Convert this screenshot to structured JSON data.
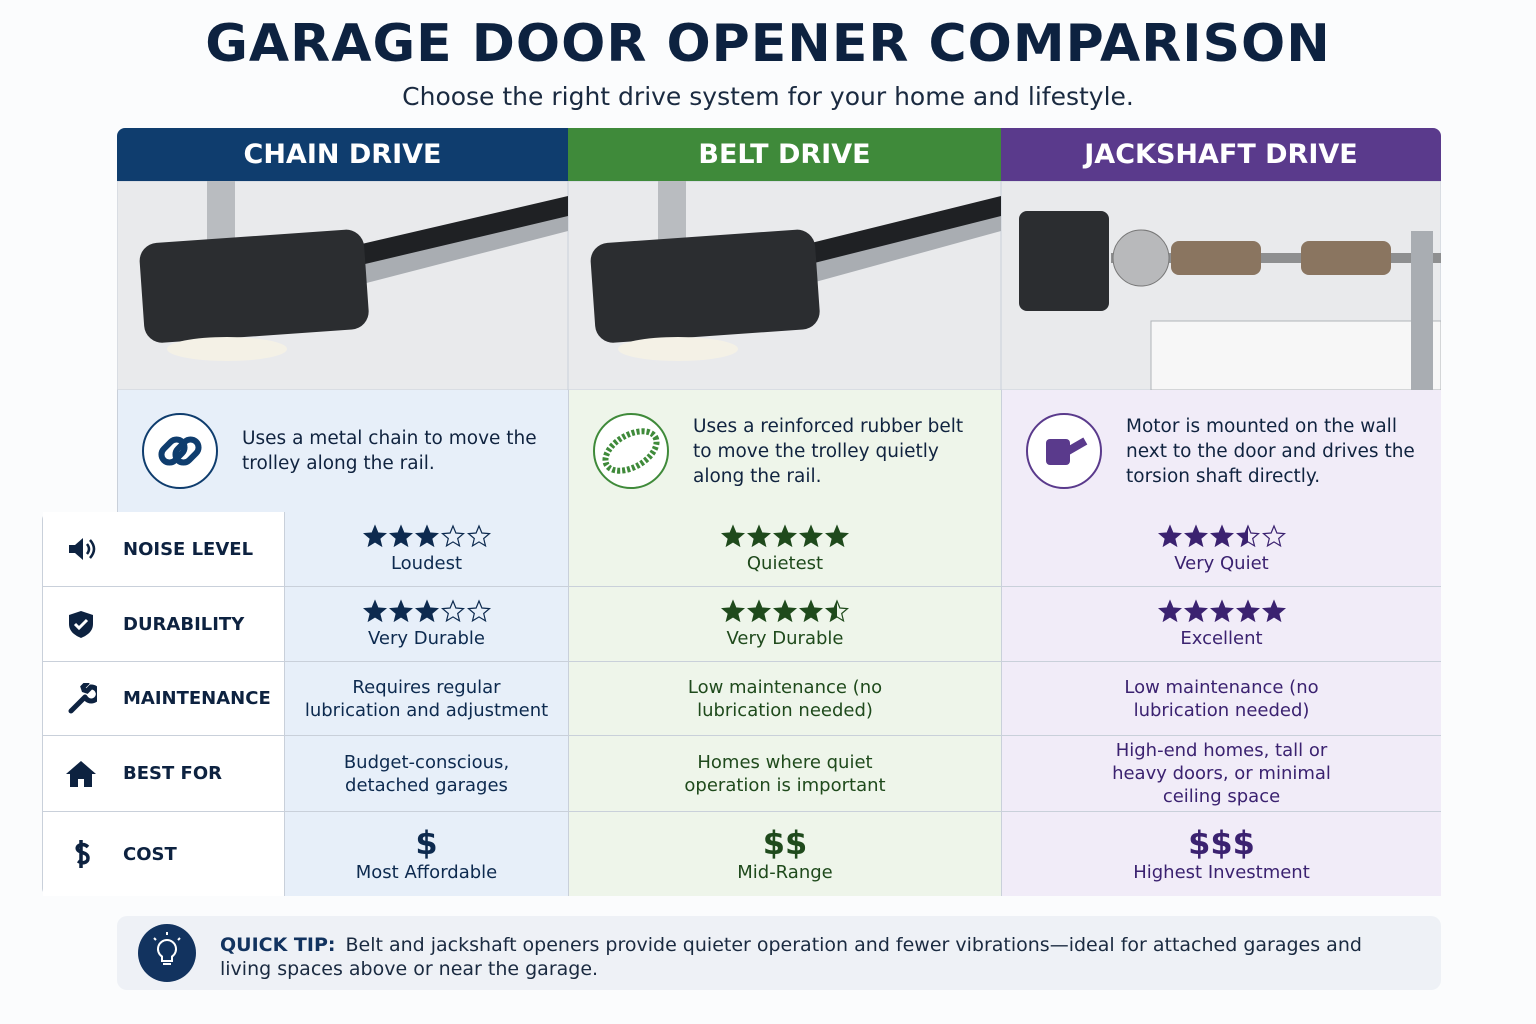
{
  "header": {
    "title": "GARAGE DOOR OPENER COMPARISON",
    "subtitle": "Choose the right drive system for your home and lifestyle."
  },
  "columns": [
    {
      "name": "CHAIN DRIVE",
      "description": "Uses a metal chain to move the trolley along the rail.",
      "color": "#0f3d6e",
      "text_color": "#0d2a4f",
      "tint": "#e7eff9"
    },
    {
      "name": "BELT DRIVE",
      "description": "Uses a reinforced rubber belt to move the trolley quietly along the rail.",
      "color": "#3f8a3a",
      "text_color": "#1f4a1c",
      "tint": "#eef5ea"
    },
    {
      "name": "JACKSHAFT DRIVE",
      "description": "Motor is mounted on the wall next to the door and drives the torsion shaft directly.",
      "color": "#5a3a8c",
      "text_color": "#3b2270",
      "tint": "#f1ecf8"
    }
  ],
  "rows": [
    {
      "label": "NOISE LEVEL",
      "cells": [
        {
          "rating": 3,
          "text": "Loudest"
        },
        {
          "rating": 5,
          "text": "Quietest"
        },
        {
          "rating": 3.5,
          "text": "Very Quiet"
        }
      ]
    },
    {
      "label": "DURABILITY",
      "cells": [
        {
          "rating": 3,
          "text": "Very Durable"
        },
        {
          "rating": 4.5,
          "text": "Very Durable"
        },
        {
          "rating": 5,
          "text": "Excellent"
        }
      ]
    },
    {
      "label": "MAINTENANCE",
      "cells": [
        {
          "text": "Requires regular lubrication and adjustment"
        },
        {
          "text": "Low maintenance (no lubrication needed)"
        },
        {
          "text": "Low maintenance (no lubrication needed)"
        }
      ]
    },
    {
      "label": "BEST FOR",
      "cells": [
        {
          "text": "Budget-conscious, detached garages"
        },
        {
          "text": "Homes where quiet operation is important"
        },
        {
          "text": "High-end homes, tall or heavy doors, or minimal ceiling space"
        }
      ]
    },
    {
      "label": "COST",
      "cells": [
        {
          "symbol": "$",
          "text": "Most Affordable"
        },
        {
          "symbol": "$$",
          "text": "Mid-Range"
        },
        {
          "symbol": "$$$",
          "text": "Highest Investment"
        }
      ]
    }
  ],
  "tip": {
    "label": "QUICK TIP:",
    "text": "Belt and jackshaft openers provide quieter operation and fewer vibrations—ideal for attached garages and living spaces above or near the garage."
  }
}
